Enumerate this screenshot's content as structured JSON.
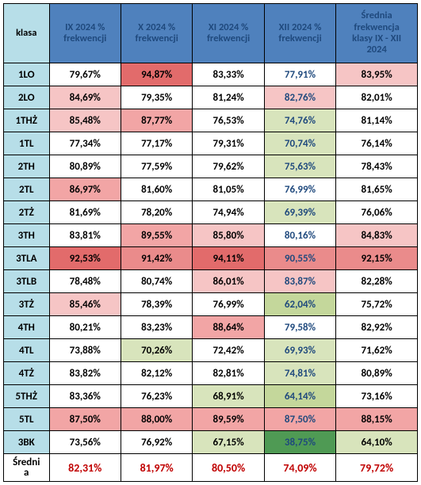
{
  "header": {
    "cells": [
      {
        "label": "klasa",
        "bg": "#b7dee8",
        "color": "#000000"
      },
      {
        "label": "IX 2024 %\nfrekwencji",
        "bg": "#4f81bd",
        "color": "#1f497d"
      },
      {
        "label": "X 2024 %\nfrekwencji",
        "bg": "#4f81bd",
        "color": "#1f497d"
      },
      {
        "label": "XI 2024 %\nfrekwencji",
        "bg": "#4f81bd",
        "color": "#1f497d"
      },
      {
        "label": "XII 2024 %\nfrekwencji",
        "bg": "#4f81bd",
        "color": "#1f497d"
      },
      {
        "label": "Średnia\nfrekwencja\nklasy IX - XII\n2024",
        "bg": "#4f81bd",
        "color": "#1f497d"
      }
    ]
  },
  "rows": [
    {
      "klasa": {
        "text": "1LO",
        "bg": "#b7dee8"
      },
      "cells": [
        {
          "text": "79,67%",
          "bg": "#ffffff",
          "color": "#000000"
        },
        {
          "text": "94,87%",
          "bg": "#e26b6b",
          "color": "#000000"
        },
        {
          "text": "83,33%",
          "bg": "#ffffff",
          "color": "#000000"
        },
        {
          "text": "77,91%",
          "bg": "#ffffff",
          "color": "#1f497d"
        },
        {
          "text": "83,95%",
          "bg": "#f6c5c5",
          "color": "#000000"
        }
      ]
    },
    {
      "klasa": {
        "text": "2LO",
        "bg": "#b7dee8"
      },
      "cells": [
        {
          "text": "84,69%",
          "bg": "#f6c5c5",
          "color": "#000000"
        },
        {
          "text": "79,35%",
          "bg": "#ffffff",
          "color": "#000000"
        },
        {
          "text": "81,24%",
          "bg": "#ffffff",
          "color": "#000000"
        },
        {
          "text": "82,76%",
          "bg": "#f6c5c5",
          "color": "#1f497d"
        },
        {
          "text": "82,01%",
          "bg": "#ffffff",
          "color": "#000000"
        }
      ]
    },
    {
      "klasa": {
        "text": "1THŻ",
        "bg": "#b7dee8"
      },
      "cells": [
        {
          "text": "85,48%",
          "bg": "#f6c5c5",
          "color": "#000000"
        },
        {
          "text": "87,77%",
          "bg": "#f2a5a5",
          "color": "#000000"
        },
        {
          "text": "76,53%",
          "bg": "#ffffff",
          "color": "#000000"
        },
        {
          "text": "74,76%",
          "bg": "#d8e4bc",
          "color": "#1f497d"
        },
        {
          "text": "81,14%",
          "bg": "#ffffff",
          "color": "#000000"
        }
      ]
    },
    {
      "klasa": {
        "text": "1TL",
        "bg": "#b7dee8"
      },
      "cells": [
        {
          "text": "77,34%",
          "bg": "#ffffff",
          "color": "#000000"
        },
        {
          "text": "77,17%",
          "bg": "#ffffff",
          "color": "#000000"
        },
        {
          "text": "79,31%",
          "bg": "#ffffff",
          "color": "#000000"
        },
        {
          "text": "70,74%",
          "bg": "#d8e4bc",
          "color": "#1f497d"
        },
        {
          "text": "76,14%",
          "bg": "#ffffff",
          "color": "#000000"
        }
      ]
    },
    {
      "klasa": {
        "text": "2TH",
        "bg": "#b7dee8"
      },
      "cells": [
        {
          "text": "80,89%",
          "bg": "#ffffff",
          "color": "#000000"
        },
        {
          "text": "77,59%",
          "bg": "#ffffff",
          "color": "#000000"
        },
        {
          "text": "79,62%",
          "bg": "#ffffff",
          "color": "#000000"
        },
        {
          "text": "75,63%",
          "bg": "#d8e4bc",
          "color": "#1f497d"
        },
        {
          "text": "78,43%",
          "bg": "#ffffff",
          "color": "#000000"
        }
      ]
    },
    {
      "klasa": {
        "text": "2TL",
        "bg": "#b7dee8"
      },
      "cells": [
        {
          "text": "86,97%",
          "bg": "#f2a5a5",
          "color": "#000000"
        },
        {
          "text": "81,60%",
          "bg": "#ffffff",
          "color": "#000000"
        },
        {
          "text": "81,05%",
          "bg": "#ffffff",
          "color": "#000000"
        },
        {
          "text": "76,99%",
          "bg": "#ffffff",
          "color": "#1f497d"
        },
        {
          "text": "81,65%",
          "bg": "#ffffff",
          "color": "#000000"
        }
      ]
    },
    {
      "klasa": {
        "text": "2TŻ",
        "bg": "#b7dee8"
      },
      "cells": [
        {
          "text": "81,69%",
          "bg": "#ffffff",
          "color": "#000000"
        },
        {
          "text": "78,20%",
          "bg": "#ffffff",
          "color": "#000000"
        },
        {
          "text": "74,94%",
          "bg": "#ffffff",
          "color": "#000000"
        },
        {
          "text": "69,39%",
          "bg": "#d8e4bc",
          "color": "#1f497d"
        },
        {
          "text": "76,06%",
          "bg": "#ffffff",
          "color": "#000000"
        }
      ]
    },
    {
      "klasa": {
        "text": "3TH",
        "bg": "#b7dee8"
      },
      "cells": [
        {
          "text": "83,81%",
          "bg": "#ffffff",
          "color": "#000000"
        },
        {
          "text": "89,55%",
          "bg": "#f2a5a5",
          "color": "#000000"
        },
        {
          "text": "85,80%",
          "bg": "#f6c5c5",
          "color": "#000000"
        },
        {
          "text": "80,16%",
          "bg": "#ffffff",
          "color": "#1f497d"
        },
        {
          "text": "84,83%",
          "bg": "#f6c5c5",
          "color": "#000000"
        }
      ]
    },
    {
      "klasa": {
        "text": "3TLA",
        "bg": "#b7dee8"
      },
      "cells": [
        {
          "text": "92,53%",
          "bg": "#e26b6b",
          "color": "#000000"
        },
        {
          "text": "91,42%",
          "bg": "#ea8b8b",
          "color": "#000000"
        },
        {
          "text": "94,11%",
          "bg": "#e26b6b",
          "color": "#000000"
        },
        {
          "text": "90,55%",
          "bg": "#ea8b8b",
          "color": "#1f497d"
        },
        {
          "text": "92,15%",
          "bg": "#ea8b8b",
          "color": "#000000"
        }
      ]
    },
    {
      "klasa": {
        "text": "3TLB",
        "bg": "#b7dee8"
      },
      "cells": [
        {
          "text": "78,48%",
          "bg": "#ffffff",
          "color": "#000000"
        },
        {
          "text": "80,74%",
          "bg": "#ffffff",
          "color": "#000000"
        },
        {
          "text": "86,01%",
          "bg": "#f6c5c5",
          "color": "#000000"
        },
        {
          "text": "83,87%",
          "bg": "#f6c5c5",
          "color": "#1f497d"
        },
        {
          "text": "82,28%",
          "bg": "#ffffff",
          "color": "#000000"
        }
      ]
    },
    {
      "klasa": {
        "text": "3TŻ",
        "bg": "#b7dee8"
      },
      "cells": [
        {
          "text": "85,46%",
          "bg": "#f6c5c5",
          "color": "#000000"
        },
        {
          "text": "78,39%",
          "bg": "#ffffff",
          "color": "#000000"
        },
        {
          "text": "76,99%",
          "bg": "#ffffff",
          "color": "#000000"
        },
        {
          "text": "62,04%",
          "bg": "#c4d79b",
          "color": "#1f497d"
        },
        {
          "text": "75,72%",
          "bg": "#ffffff",
          "color": "#000000"
        }
      ]
    },
    {
      "klasa": {
        "text": "4TH",
        "bg": "#b7dee8"
      },
      "cells": [
        {
          "text": "80,21%",
          "bg": "#ffffff",
          "color": "#000000"
        },
        {
          "text": "83,23%",
          "bg": "#ffffff",
          "color": "#000000"
        },
        {
          "text": "88,64%",
          "bg": "#f2a5a5",
          "color": "#000000"
        },
        {
          "text": "79,58%",
          "bg": "#ffffff",
          "color": "#1f497d"
        },
        {
          "text": "82,92%",
          "bg": "#ffffff",
          "color": "#000000"
        }
      ]
    },
    {
      "klasa": {
        "text": "4TL",
        "bg": "#b7dee8"
      },
      "cells": [
        {
          "text": "73,88%",
          "bg": "#ffffff",
          "color": "#000000"
        },
        {
          "text": "70,26%",
          "bg": "#d8e4bc",
          "color": "#000000"
        },
        {
          "text": "72,42%",
          "bg": "#ffffff",
          "color": "#000000"
        },
        {
          "text": "69,93%",
          "bg": "#d8e4bc",
          "color": "#1f497d"
        },
        {
          "text": "71,62%",
          "bg": "#ffffff",
          "color": "#000000"
        }
      ]
    },
    {
      "klasa": {
        "text": "4TŻ",
        "bg": "#b7dee8"
      },
      "cells": [
        {
          "text": "83,82%",
          "bg": "#ffffff",
          "color": "#000000"
        },
        {
          "text": "82,12%",
          "bg": "#ffffff",
          "color": "#000000"
        },
        {
          "text": "82,81%",
          "bg": "#ffffff",
          "color": "#000000"
        },
        {
          "text": "74,81%",
          "bg": "#d8e4bc",
          "color": "#1f497d"
        },
        {
          "text": "80,89%",
          "bg": "#ffffff",
          "color": "#000000"
        }
      ]
    },
    {
      "klasa": {
        "text": "5THŻ",
        "bg": "#b7dee8"
      },
      "cells": [
        {
          "text": "83,36%",
          "bg": "#ffffff",
          "color": "#000000"
        },
        {
          "text": "76,23%",
          "bg": "#ffffff",
          "color": "#000000"
        },
        {
          "text": "68,91%",
          "bg": "#d8e4bc",
          "color": "#000000"
        },
        {
          "text": "64,14%",
          "bg": "#c4d79b",
          "color": "#1f497d"
        },
        {
          "text": "73,16%",
          "bg": "#ffffff",
          "color": "#000000"
        }
      ]
    },
    {
      "klasa": {
        "text": "5TL",
        "bg": "#b7dee8"
      },
      "cells": [
        {
          "text": "87,50%",
          "bg": "#f2a5a5",
          "color": "#000000"
        },
        {
          "text": "88,00%",
          "bg": "#f2a5a5",
          "color": "#000000"
        },
        {
          "text": "89,59%",
          "bg": "#f2a5a5",
          "color": "#000000"
        },
        {
          "text": "87,50%",
          "bg": "#f2a5a5",
          "color": "#1f497d"
        },
        {
          "text": "88,15%",
          "bg": "#f2a5a5",
          "color": "#000000"
        }
      ]
    },
    {
      "klasa": {
        "text": "3BK",
        "bg": "#b7dee8"
      },
      "cells": [
        {
          "text": "73,56%",
          "bg": "#ffffff",
          "color": "#000000"
        },
        {
          "text": "76,92%",
          "bg": "#ffffff",
          "color": "#000000"
        },
        {
          "text": "67,15%",
          "bg": "#d8e4bc",
          "color": "#000000"
        },
        {
          "text": "38,75%",
          "bg": "#4f9a54",
          "color": "#1f497d"
        },
        {
          "text": "64,10%",
          "bg": "#d8e4bc",
          "color": "#000000"
        }
      ]
    }
  ],
  "footer": {
    "klasa": {
      "text": "Średnia",
      "bg": "#ffffff"
    },
    "cells": [
      {
        "text": "82,31%",
        "bg": "#ffffff",
        "color": "#c00000"
      },
      {
        "text": "81,97%",
        "bg": "#ffffff",
        "color": "#c00000"
      },
      {
        "text": "80,50%",
        "bg": "#ffffff",
        "color": "#c00000"
      },
      {
        "text": "74,09%",
        "bg": "#ffffff",
        "color": "#c00000"
      },
      {
        "text": "79,72%",
        "bg": "#ffffff",
        "color": "#c00000"
      }
    ]
  }
}
